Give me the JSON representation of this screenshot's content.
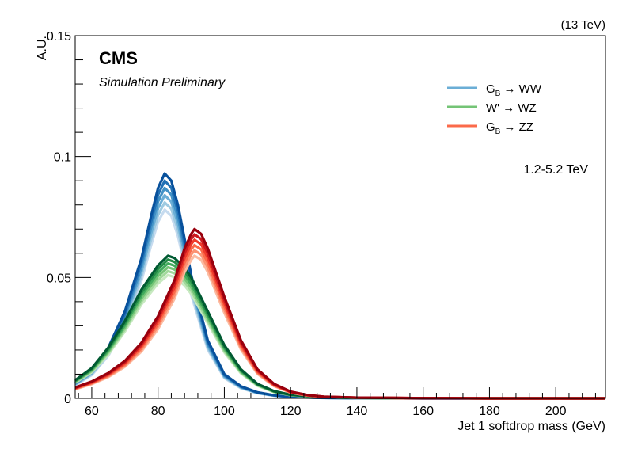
{
  "chart_data": {
    "type": "line",
    "energy_label": "(13 TeV)",
    "experiment": "CMS",
    "subtitle": "Simulation Preliminary",
    "mass_range_label": "1.2-5.2 TeV",
    "xlabel": "Jet 1 softdrop mass (GeV)",
    "ylabel": "A.U.",
    "xlim": [
      55,
      215
    ],
    "ylim": [
      0,
      0.15
    ],
    "x_ticks": [
      60,
      80,
      100,
      120,
      140,
      160,
      180,
      200
    ],
    "y_ticks": [
      {
        "value": 0,
        "label": "0"
      },
      {
        "value": 0.05,
        "label": "0.05"
      },
      {
        "value": 0.1,
        "label": "0.1"
      },
      {
        "value": 0.15,
        "label": "0.15"
      }
    ],
    "grid": false,
    "legend_position": "top-right",
    "series": [
      {
        "name": "G_B → WW",
        "label_base": "G",
        "label_sub": "B",
        "label_rest": " → WW",
        "legend_color": "#6baed6",
        "band_colors": [
          "#c6dbef",
          "#9ecae1",
          "#6baed6",
          "#4292c6",
          "#2171b5",
          "#08519c"
        ],
        "peak_range": [
          0.078,
          0.093
        ],
        "x": [
          55,
          60,
          65,
          70,
          75,
          78,
          80,
          82,
          84,
          86,
          88,
          90,
          95,
          100,
          105,
          110,
          115,
          120,
          130,
          140,
          160,
          180,
          200,
          215
        ],
        "y": [
          0.0065,
          0.0115,
          0.021,
          0.036,
          0.058,
          0.076,
          0.087,
          0.093,
          0.09,
          0.08,
          0.066,
          0.051,
          0.024,
          0.01,
          0.005,
          0.0025,
          0.0013,
          0.0006,
          0.0002,
          0.0001,
          0.0,
          0.0,
          0.0,
          0.0
        ]
      },
      {
        "name": "W' → WZ",
        "label_base": "W'",
        "label_sub": "",
        "label_rest": " → WZ",
        "legend_color": "#74c476",
        "band_colors": [
          "#c7e9c0",
          "#a1d99b",
          "#74c476",
          "#41ab5d",
          "#238b45",
          "#005a32"
        ],
        "peak_range": [
          0.051,
          0.059
        ],
        "x": [
          55,
          60,
          65,
          70,
          75,
          80,
          83,
          85,
          88,
          90,
          95,
          100,
          105,
          110,
          115,
          120,
          130,
          140,
          160,
          180,
          200,
          215
        ],
        "y": [
          0.0075,
          0.0125,
          0.021,
          0.032,
          0.045,
          0.055,
          0.059,
          0.058,
          0.054,
          0.05,
          0.036,
          0.022,
          0.012,
          0.006,
          0.003,
          0.0015,
          0.0005,
          0.0002,
          0.0001,
          0.0,
          0.0,
          0.0
        ]
      },
      {
        "name": "G_B → ZZ",
        "label_base": "G",
        "label_sub": "B",
        "label_rest": " → ZZ",
        "legend_color": "#fb6a4a",
        "band_colors": [
          "#fcbba1",
          "#fc9272",
          "#fb6a4a",
          "#ef3b2c",
          "#cb181d",
          "#99000d"
        ],
        "peak_range": [
          0.059,
          0.07
        ],
        "x": [
          55,
          60,
          65,
          70,
          75,
          80,
          85,
          88,
          90,
          91,
          93,
          95,
          100,
          105,
          110,
          115,
          120,
          125,
          130,
          140,
          160,
          180,
          200,
          215
        ],
        "y": [
          0.0045,
          0.007,
          0.0105,
          0.0155,
          0.023,
          0.034,
          0.049,
          0.062,
          0.068,
          0.07,
          0.068,
          0.062,
          0.042,
          0.024,
          0.012,
          0.006,
          0.0028,
          0.0014,
          0.0007,
          0.0003,
          0.0001,
          0.0,
          0.0,
          0.0
        ]
      }
    ]
  }
}
